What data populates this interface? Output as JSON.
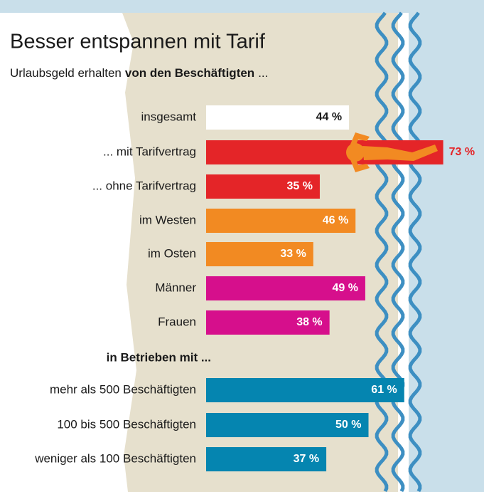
{
  "chart_data": {
    "type": "bar",
    "title": "Besser entspannen mit Tarif",
    "subtitle": {
      "plain": "Urlaubsgeld erhalten",
      "bold": "von den Beschäftigten",
      "end": "..."
    },
    "categories": [
      "insgesamt",
      "... mit Tarifvertrag",
      "... ohne Tarifvertrag",
      "im Westen",
      "im Osten",
      "Männer",
      "Frauen",
      "mehr als 500 Beschäftigten",
      "100 bis 500 Beschäftigten",
      "weniger als 100 Beschäftigten"
    ],
    "values": [
      44,
      73,
      35,
      46,
      33,
      49,
      38,
      61,
      50,
      37
    ],
    "value_labels": [
      "44 %",
      "73 %",
      "35 %",
      "46 %",
      "33 %",
      "49 %",
      "38 %",
      "61 %",
      "50 %",
      "37 %"
    ],
    "colors": [
      "#ffffff",
      "#e42528",
      "#e42528",
      "#f28a22",
      "#f28a22",
      "#d60f8c",
      "#d60f8c",
      "#0585b0",
      "#0585b0",
      "#0585b0"
    ],
    "group_label": "in Betrieben mit ..."
  }
}
